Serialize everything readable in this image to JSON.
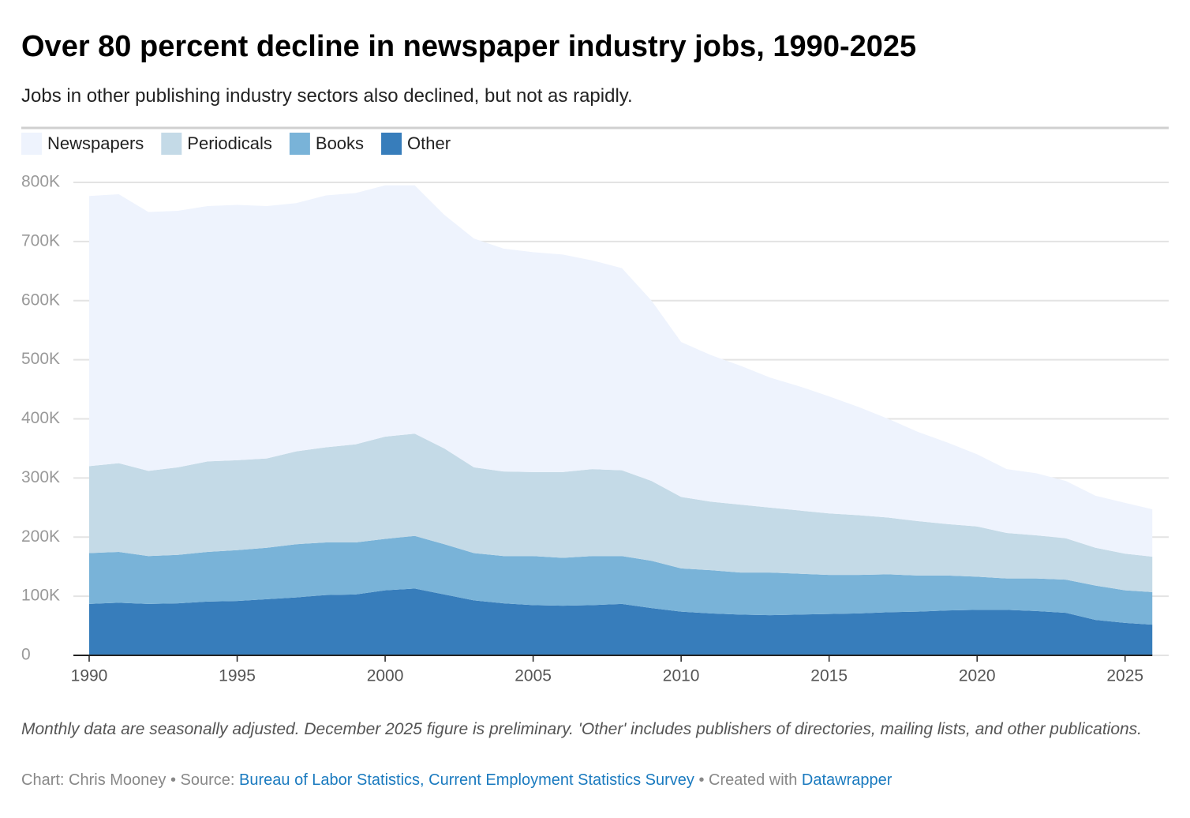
{
  "chart_data": {
    "type": "stacked_area",
    "title": "Over 80 percent decline in newspaper industry jobs, 1990-2025",
    "subtitle": "Jobs in other publishing industry sectors also declined, but not as rapidly.",
    "x": [
      1990,
      1991,
      1992,
      1993,
      1994,
      1995,
      1996,
      1997,
      1998,
      1999,
      2000,
      2001,
      2002,
      2003,
      2004,
      2005,
      2006,
      2007,
      2008,
      2009,
      2010,
      2011,
      2012,
      2013,
      2014,
      2015,
      2016,
      2017,
      2018,
      2019,
      2020,
      2021,
      2022,
      2023,
      2024,
      2025,
      2025.92
    ],
    "series": [
      {
        "name": "Newspapers",
        "color": "#eef3fd",
        "values": [
          457000,
          455000,
          438000,
          434000,
          432000,
          432000,
          427000,
          420000,
          426000,
          425000,
          425000,
          420000,
          395000,
          387000,
          377000,
          372000,
          368000,
          353000,
          342000,
          305000,
          262000,
          248000,
          235000,
          220000,
          210000,
          198000,
          183000,
          167000,
          151000,
          138000,
          122000,
          108000,
          105000,
          97000,
          88000,
          86000,
          80000
        ]
      },
      {
        "name": "Periodicals",
        "color": "#c4dae7",
        "values": [
          147000,
          150000,
          144000,
          148000,
          153000,
          152000,
          151000,
          157000,
          161000,
          166000,
          173000,
          173000,
          162000,
          145000,
          143000,
          142000,
          145000,
          147000,
          145000,
          135000,
          121000,
          116000,
          115000,
          110000,
          107000,
          104000,
          101000,
          96000,
          92000,
          87000,
          85000,
          77000,
          73000,
          70000,
          64000,
          62000,
          60000
        ]
      },
      {
        "name": "Books",
        "color": "#79b3d8",
        "values": [
          86000,
          86000,
          81000,
          82000,
          84000,
          86000,
          87000,
          90000,
          89000,
          88000,
          87000,
          89000,
          85000,
          80000,
          80000,
          83000,
          81000,
          83000,
          81000,
          80000,
          73000,
          73000,
          71000,
          72000,
          69000,
          66000,
          65000,
          64000,
          61000,
          59000,
          56000,
          53000,
          55000,
          56000,
          58000,
          55000,
          55000
        ]
      },
      {
        "name": "Other",
        "color": "#377dbb",
        "values": [
          87000,
          89000,
          87000,
          88000,
          91000,
          92000,
          95000,
          98000,
          102000,
          103000,
          110000,
          113000,
          103000,
          93000,
          88000,
          85000,
          84000,
          85000,
          87000,
          80000,
          74000,
          71000,
          69000,
          68000,
          69000,
          70000,
          71000,
          73000,
          74000,
          76000,
          77000,
          77000,
          75000,
          72000,
          60000,
          55000,
          52000
        ]
      }
    ],
    "xlim": [
      1990,
      2026.5
    ],
    "xticks": [
      1990,
      1995,
      2000,
      2005,
      2010,
      2015,
      2020,
      2025
    ],
    "ylim": [
      0,
      800000
    ],
    "yticks": [
      0,
      {
        "value": 100000,
        "label": "100K"
      },
      {
        "value": 200000,
        "label": "200K"
      },
      {
        "value": 300000,
        "label": "300K"
      },
      {
        "value": 400000,
        "label": "400K"
      },
      {
        "value": 500000,
        "label": "500K"
      },
      {
        "value": 600000,
        "label": "600K"
      },
      {
        "value": 700000,
        "label": "700K"
      },
      {
        "value": 800000,
        "label": "800K"
      }
    ],
    "grid": true,
    "note": "Monthly data are seasonally adjusted. December 2025 figure is preliminary. 'Other' includes publishers of directories, mailing lists, and other publications.",
    "credit": {
      "author": "Chart: Chris Mooney",
      "source_prefix": "• Source:",
      "source": "Bureau of Labor Statistics, Current Employment Statistics Survey",
      "tool_prefix": "• Created with",
      "tool": "Datawrapper"
    }
  }
}
